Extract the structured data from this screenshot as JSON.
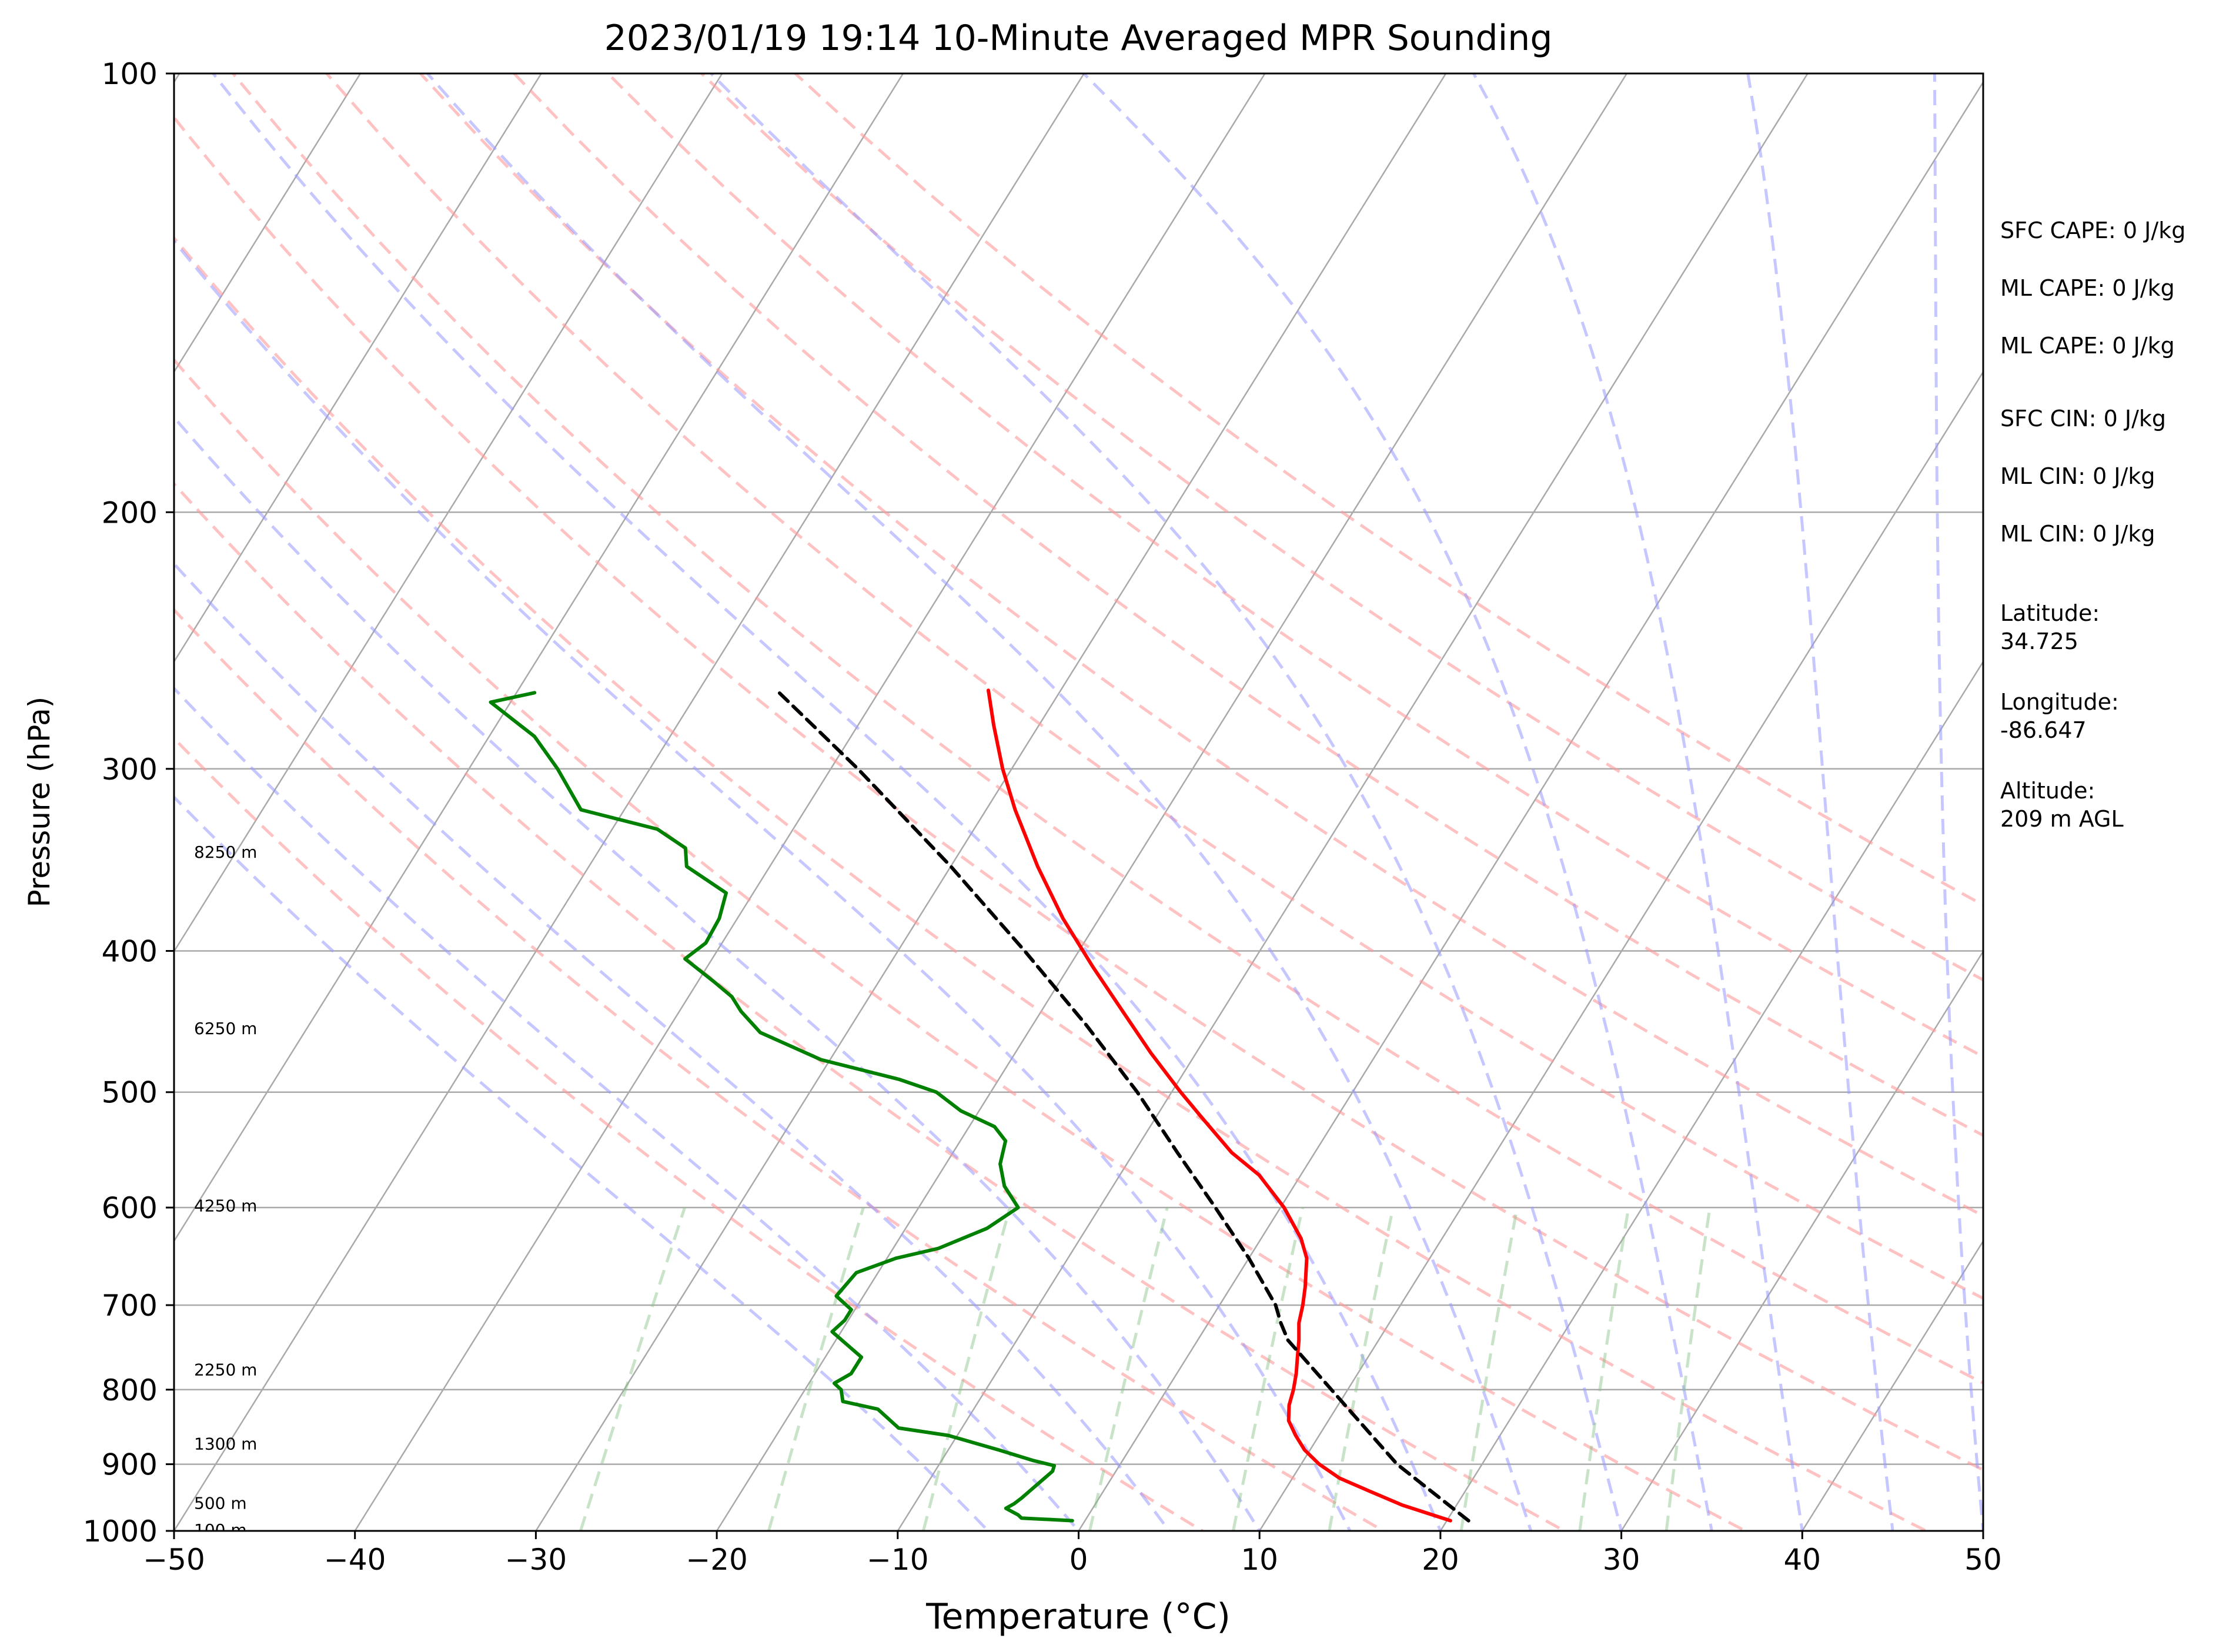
{
  "chart_data": {
    "type": "line",
    "title": "2023/01/19 19:14 10-Minute Averaged MPR Sounding",
    "xlabel": "Temperature (°C)",
    "ylabel": "Pressure (hPa)",
    "xlim": [
      -50,
      50
    ],
    "ylim": [
      1000,
      100
    ],
    "y_scale": "log",
    "skew_deg_per_log": 50.3,
    "x_ticks": [
      -50,
      -40,
      -30,
      -20,
      -10,
      0,
      10,
      20,
      30,
      40,
      50
    ],
    "x_tick_labels": [
      "−50",
      "−40",
      "−30",
      "−20",
      "−10",
      "0",
      "10",
      "20",
      "30",
      "40",
      "50"
    ],
    "y_ticks": [
      1000,
      900,
      800,
      700,
      600,
      500,
      400,
      300,
      200,
      100
    ],
    "y_tick_labels": [
      "1000",
      "900",
      "800",
      "700",
      "600",
      "500",
      "400",
      "300",
      "200",
      "100"
    ],
    "grid": true,
    "colors": {
      "temperature": "#ff0000",
      "dewpoint": "#008000",
      "parcel": "#000000",
      "isotherm": "#a9a9a9",
      "dry_adiabat": "#ff9999",
      "moist_adiabat": "#9999ff",
      "mixing_ratio": "#88c088"
    },
    "series": [
      {
        "key": "temperature",
        "points": [
          [
            984,
            20.2
          ],
          [
            960,
            17
          ],
          [
            940,
            14.8
          ],
          [
            920,
            12.6
          ],
          [
            900,
            11.0
          ],
          [
            880,
            9.7
          ],
          [
            860,
            8.7
          ],
          [
            840,
            7.8
          ],
          [
            820,
            7.3
          ],
          [
            800,
            7.0
          ],
          [
            780,
            6.6
          ],
          [
            760,
            6.1
          ],
          [
            740,
            5.6
          ],
          [
            720,
            5.0
          ],
          [
            700,
            4.6
          ],
          [
            680,
            4.1
          ],
          [
            650,
            3.2
          ],
          [
            630,
            2.2
          ],
          [
            600,
            0.2
          ],
          [
            570,
            -2.3
          ],
          [
            550,
            -4.6
          ],
          [
            520,
            -7.5
          ],
          [
            500,
            -9.5
          ],
          [
            470,
            -12.5
          ],
          [
            440,
            -15.5
          ],
          [
            410,
            -18.7
          ],
          [
            380,
            -22.0
          ],
          [
            350,
            -25.2
          ],
          [
            320,
            -28.4
          ],
          [
            300,
            -30.5
          ],
          [
            280,
            -32.5
          ],
          [
            265,
            -34.0
          ]
        ]
      },
      {
        "key": "dewpoint",
        "points": [
          [
            984,
            -0.7
          ],
          [
            980,
            -3.6
          ],
          [
            975,
            -3.9
          ],
          [
            965,
            -4.8
          ],
          [
            958,
            -4.5
          ],
          [
            950,
            -4.3
          ],
          [
            940,
            -4.1
          ],
          [
            920,
            -3.7
          ],
          [
            910,
            -3.5
          ],
          [
            902,
            -3.6
          ],
          [
            895,
            -4.9
          ],
          [
            880,
            -7.2
          ],
          [
            860,
            -10.5
          ],
          [
            850,
            -13.5
          ],
          [
            825,
            -15.3
          ],
          [
            815,
            -17.5
          ],
          [
            800,
            -18.0
          ],
          [
            792,
            -18.6
          ],
          [
            780,
            -18.0
          ],
          [
            770,
            -18.0
          ],
          [
            760,
            -18.0
          ],
          [
            730,
            -20.5
          ],
          [
            717,
            -20.2
          ],
          [
            705,
            -20.2
          ],
          [
            690,
            -21.5
          ],
          [
            665,
            -21.2
          ],
          [
            650,
            -19.5
          ],
          [
            640,
            -17.5
          ],
          [
            620,
            -15.5
          ],
          [
            600,
            -14.5
          ],
          [
            580,
            -16.0
          ],
          [
            560,
            -17.0
          ],
          [
            540,
            -17.5
          ],
          [
            528,
            -18.6
          ],
          [
            515,
            -21.0
          ],
          [
            500,
            -23.0
          ],
          [
            490,
            -25.5
          ],
          [
            475,
            -30.5
          ],
          [
            455,
            -34.8
          ],
          [
            440,
            -36.6
          ],
          [
            430,
            -37.6
          ],
          [
            420,
            -39.1
          ],
          [
            405,
            -41.5
          ],
          [
            395,
            -40.9
          ],
          [
            380,
            -41.0
          ],
          [
            365,
            -41.5
          ],
          [
            350,
            -44.6
          ],
          [
            340,
            -45.3
          ],
          [
            330,
            -47.5
          ],
          [
            320,
            -52.4
          ],
          [
            300,
            -55.1
          ],
          [
            285,
            -57.5
          ],
          [
            270,
            -61.1
          ],
          [
            266,
            -59.0
          ]
        ]
      },
      {
        "key": "parcel",
        "points": [
          [
            984,
            21.2
          ],
          [
            900,
            15.3
          ],
          [
            800,
            9.1
          ],
          [
            740,
            5.0
          ],
          [
            720,
            4.0
          ],
          [
            700,
            3.1
          ],
          [
            650,
            0.0
          ],
          [
            600,
            -3.6
          ],
          [
            550,
            -7.6
          ],
          [
            500,
            -11.9
          ],
          [
            450,
            -17.0
          ],
          [
            400,
            -23.0
          ],
          [
            350,
            -30.0
          ],
          [
            300,
            -38.5
          ],
          [
            265,
            -45.7
          ]
        ]
      }
    ],
    "height_labels": [
      {
        "text": "100 m",
        "p": 998
      },
      {
        "text": "500 m",
        "p": 957
      },
      {
        "text": "1300 m",
        "p": 871
      },
      {
        "text": "2250 m",
        "p": 775
      },
      {
        "text": "4250 m",
        "p": 598
      },
      {
        "text": "6250 m",
        "p": 452
      },
      {
        "text": "8250 m",
        "p": 342
      }
    ],
    "dry_adiabat_theta_K": [
      280,
      290,
      300,
      310,
      320,
      330,
      340,
      350,
      360,
      370,
      380,
      390,
      400
    ],
    "moist_adiabat_T0_C": [
      -5,
      0,
      5,
      10,
      15,
      20,
      25,
      30,
      35,
      40,
      45,
      50
    ],
    "mixing_ratio_gkg": [
      0.4,
      1,
      2,
      4,
      7,
      10,
      16,
      24,
      32
    ]
  },
  "info": {
    "sfc_cape": "SFC CAPE: 0 J/kg",
    "ml_cape_1": "ML CAPE: 0 J/kg",
    "ml_cape_2": "ML CAPE: 0 J/kg",
    "sfc_cin": "SFC CIN: 0 J/kg",
    "ml_cin_1": "ML CIN: 0 J/kg",
    "ml_cin_2": "ML CIN: 0 J/kg",
    "latitude": "Latitude:\n34.725",
    "longitude": "Longitude:\n-86.647",
    "altitude": "Altitude:\n209 m AGL"
  }
}
